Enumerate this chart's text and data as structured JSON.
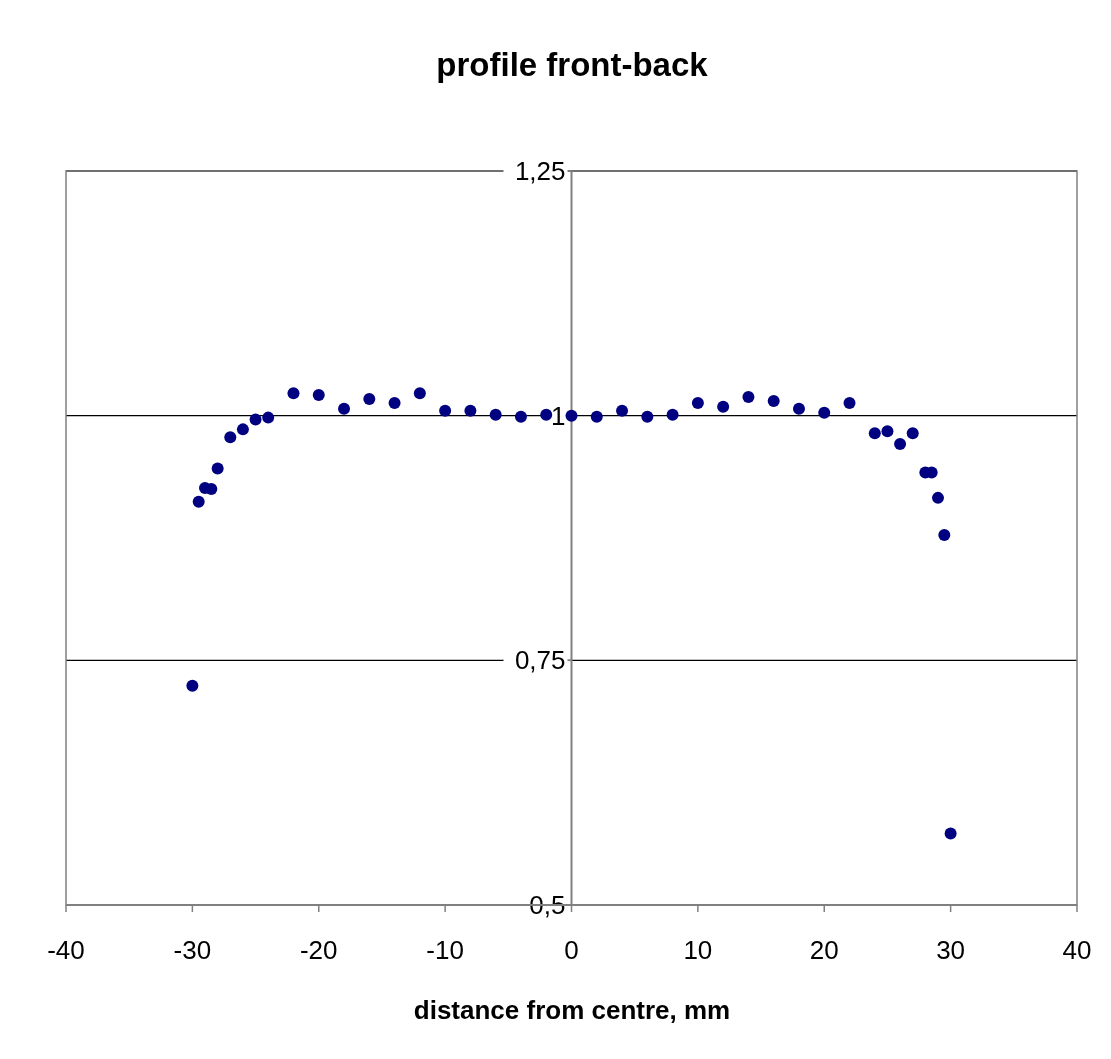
{
  "chart_data": {
    "type": "scatter",
    "title": "profile front-back",
    "xlabel": "distance from centre, mm",
    "x": [
      -30,
      -29.5,
      -29,
      -28.5,
      -28,
      -27,
      -26,
      -25,
      -24,
      -22,
      -20,
      -18,
      -16,
      -14,
      -12,
      -10,
      -8,
      -6,
      -4,
      -2,
      0,
      2,
      4,
      6,
      8,
      10,
      12,
      14,
      16,
      18,
      20,
      22,
      24,
      25,
      26,
      27,
      28,
      28.5,
      29,
      29.5,
      30
    ],
    "series": [
      {
        "color": "#000080",
        "values": [
          0.724,
          0.912,
          0.926,
          0.925,
          0.946,
          0.978,
          0.986,
          0.996,
          0.998,
          1.023,
          1.021,
          1.007,
          1.017,
          1.013,
          1.023,
          1.005,
          1.005,
          1.001,
          0.999,
          1.001,
          1.0,
          0.999,
          1.005,
          0.999,
          1.001,
          1.013,
          1.009,
          1.019,
          1.015,
          1.007,
          1.003,
          1.013,
          0.982,
          0.984,
          0.971,
          0.982,
          0.942,
          0.942,
          0.916,
          0.878,
          0.573
        ]
      }
    ],
    "xlim": [
      -40,
      40
    ],
    "xticks": [
      -40,
      -30,
      -20,
      -10,
      0,
      10,
      20,
      30,
      40
    ],
    "ylim": [
      0.5,
      1.25
    ],
    "yticks": [
      {
        "value": 0.5,
        "label": "0,5"
      },
      {
        "value": 0.75,
        "label": "0,75"
      },
      {
        "value": 1,
        "label": "1"
      },
      {
        "value": 1.25,
        "label": "1,25"
      }
    ],
    "grid": "y",
    "marker": "circle"
  }
}
